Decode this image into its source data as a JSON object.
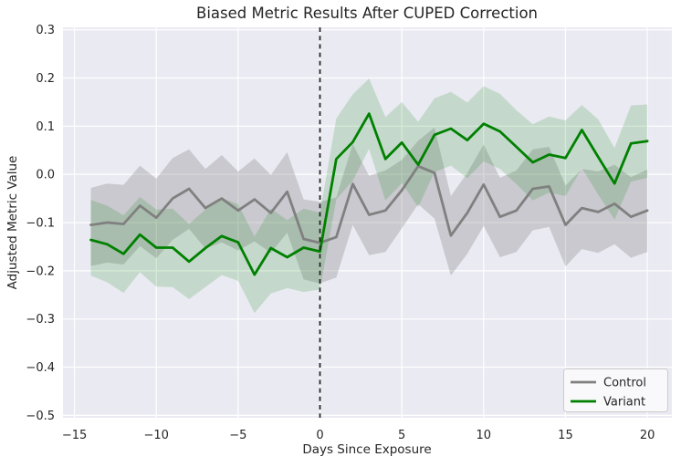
{
  "title": "Biased Metric Results After CUPED Correction",
  "chart_data": {
    "type": "line",
    "title": "Biased Metric Results After CUPED Correction",
    "xlabel": "Days Since Exposure",
    "ylabel": "Adjusted Metric Value",
    "xlim": [
      -15.7,
      21.5
    ],
    "ylim": [
      -0.505,
      0.305
    ],
    "xticks": [
      -15,
      -10,
      -5,
      0,
      5,
      10,
      15,
      20
    ],
    "yticks": [
      0.3,
      0.2,
      0.1,
      0.0,
      -0.1,
      -0.2,
      -0.3,
      -0.4,
      -0.5
    ],
    "grid": true,
    "legend": {
      "position": "lower right",
      "entries": [
        "Control",
        "Variant"
      ]
    },
    "vline": {
      "x": 0,
      "style": "dashed",
      "color": "#1f1f1f"
    },
    "x": [
      -14,
      -13,
      -12,
      -11,
      -10,
      -9,
      -8,
      -7,
      -6,
      -5,
      -4,
      -3,
      -2,
      -1,
      0,
      1,
      2,
      3,
      4,
      5,
      6,
      7,
      8,
      9,
      10,
      11,
      12,
      13,
      14,
      15,
      16,
      17,
      18,
      19,
      20
    ],
    "series": [
      {
        "name": "Control",
        "color": "#808080",
        "band_color": "rgba(115,115,115,0.27)",
        "values": [
          -0.105,
          -0.1,
          -0.103,
          -0.065,
          -0.09,
          -0.05,
          -0.03,
          -0.07,
          -0.05,
          -0.075,
          -0.052,
          -0.08,
          -0.036,
          -0.134,
          -0.142,
          -0.13,
          -0.02,
          -0.084,
          -0.075,
          -0.033,
          0.017,
          0.003,
          -0.127,
          -0.08,
          -0.021,
          -0.088,
          -0.075,
          -0.03,
          -0.025,
          -0.105,
          -0.07,
          -0.078,
          -0.061,
          -0.088,
          -0.075
        ],
        "upper": [
          -0.028,
          -0.019,
          -0.022,
          0.018,
          -0.009,
          0.034,
          0.052,
          0.011,
          0.04,
          0.006,
          0.033,
          -0.001,
          0.046,
          -0.052,
          -0.057,
          -0.048,
          0.063,
          -0.003,
          0.008,
          0.03,
          0.07,
          0.097,
          -0.045,
          0.003,
          0.062,
          -0.007,
          0.008,
          0.052,
          0.057,
          -0.023,
          0.011,
          0.006,
          0.02,
          -0.006,
          0.01
        ],
        "lower": [
          -0.19,
          -0.183,
          -0.187,
          -0.149,
          -0.174,
          -0.136,
          -0.113,
          -0.154,
          -0.141,
          -0.158,
          -0.139,
          -0.163,
          -0.121,
          -0.218,
          -0.226,
          -0.214,
          -0.105,
          -0.168,
          -0.161,
          -0.112,
          -0.062,
          -0.092,
          -0.21,
          -0.165,
          -0.107,
          -0.172,
          -0.161,
          -0.116,
          -0.109,
          -0.191,
          -0.155,
          -0.163,
          -0.145,
          -0.173,
          -0.161
        ]
      },
      {
        "name": "Variant",
        "color": "#008000",
        "band_color": "rgba(0,128,0,0.16)",
        "values": [
          -0.136,
          -0.145,
          -0.165,
          -0.125,
          -0.152,
          -0.152,
          -0.181,
          -0.153,
          -0.128,
          -0.141,
          -0.208,
          -0.153,
          -0.172,
          -0.152,
          -0.16,
          0.032,
          0.067,
          0.126,
          0.032,
          0.066,
          0.02,
          0.082,
          0.095,
          0.071,
          0.105,
          0.089,
          0.057,
          0.025,
          0.041,
          0.034,
          0.092,
          0.036,
          -0.019,
          0.064,
          0.069
        ],
        "upper": [
          -0.053,
          -0.065,
          -0.085,
          -0.047,
          -0.073,
          -0.071,
          -0.103,
          -0.073,
          -0.049,
          -0.062,
          -0.129,
          -0.071,
          -0.095,
          -0.071,
          -0.08,
          0.116,
          0.166,
          0.199,
          0.119,
          0.15,
          0.109,
          0.158,
          0.171,
          0.149,
          0.183,
          0.167,
          0.133,
          0.104,
          0.12,
          0.112,
          0.144,
          0.114,
          0.055,
          0.143,
          0.145
        ],
        "lower": [
          -0.21,
          -0.224,
          -0.246,
          -0.203,
          -0.233,
          -0.234,
          -0.259,
          -0.234,
          -0.209,
          -0.221,
          -0.288,
          -0.247,
          -0.236,
          -0.244,
          -0.239,
          -0.052,
          -0.013,
          0.053,
          -0.054,
          -0.018,
          -0.068,
          0.005,
          0.018,
          -0.008,
          0.027,
          0.011,
          -0.02,
          -0.054,
          -0.038,
          -0.045,
          0.013,
          -0.042,
          -0.094,
          -0.015,
          -0.007
        ]
      }
    ],
    "colors": {
      "plot_bg": "#eaeaf2",
      "grid": "#ffffff",
      "text": "#262626",
      "legend_bg": "#f9f9fb",
      "legend_border": "#cccccc"
    }
  }
}
